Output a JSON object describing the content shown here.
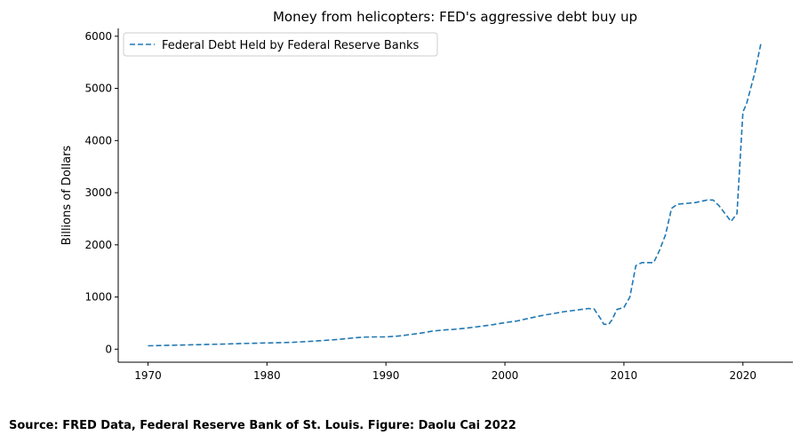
{
  "chart_data": {
    "type": "line",
    "title": "Money from helicopters: FED's aggressive debt buy up",
    "xlabel": "",
    "ylabel": "Billions of Dollars",
    "xlim": [
      1967.5,
      2024.2
    ],
    "ylim": [
      -250,
      6150
    ],
    "xticks": [
      1970,
      1980,
      1990,
      2000,
      2010,
      2020
    ],
    "yticks": [
      0,
      1000,
      2000,
      3000,
      4000,
      5000,
      6000
    ],
    "grid": false,
    "legend_position": "top-left",
    "series": [
      {
        "name": "Federal Debt Held by Federal Reserve Banks",
        "style": "dashed",
        "color": "#1f77b4",
        "x": [
          1970,
          1972,
          1974,
          1976,
          1978,
          1980,
          1982,
          1984,
          1986,
          1987,
          1988,
          1989,
          1990,
          1991,
          1992,
          1993,
          1994,
          1995,
          1996,
          1997,
          1998,
          1999,
          2000,
          2001,
          2002,
          2003,
          2004,
          2005,
          2006,
          2007,
          2007.5,
          2008,
          2008.3,
          2008.7,
          2009,
          2009.4,
          2010,
          2010.5,
          2011,
          2011.5,
          2012,
          2012.5,
          2013,
          2013.5,
          2014,
          2014.5,
          2015,
          2016,
          2017,
          2017.5,
          2018,
          2018.5,
          2019,
          2019.5,
          2020,
          2020.3,
          2021,
          2021.5
        ],
        "values": [
          65,
          75,
          85,
          95,
          110,
          120,
          130,
          155,
          185,
          210,
          230,
          235,
          235,
          250,
          280,
          310,
          350,
          370,
          385,
          410,
          440,
          470,
          510,
          540,
          590,
          640,
          680,
          720,
          750,
          780,
          770,
          600,
          480,
          470,
          560,
          760,
          800,
          1000,
          1600,
          1660,
          1660,
          1660,
          1900,
          2200,
          2700,
          2780,
          2790,
          2810,
          2860,
          2860,
          2750,
          2600,
          2450,
          2600,
          4550,
          4700,
          5300,
          5850
        ]
      }
    ]
  },
  "source_caption": "Source: FRED Data, Federal Reserve Bank of St. Louis. Figure: Daolu Cai 2022"
}
